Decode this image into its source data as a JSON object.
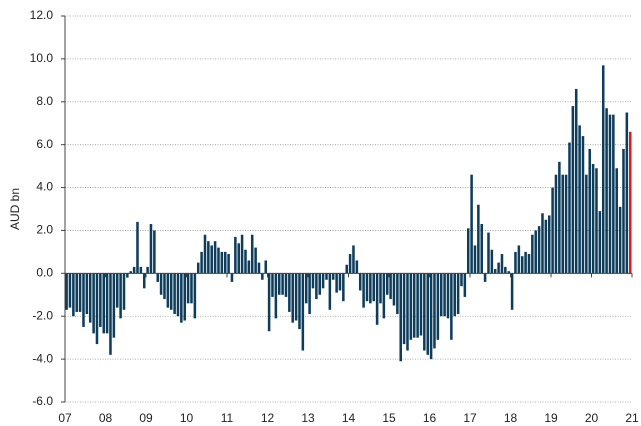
{
  "chart_data": {
    "type": "bar",
    "y_label": "AUD bn",
    "color": "#0e3d5c",
    "highlight": {
      "index": 167,
      "color": "#e3191c"
    },
    "grid": true,
    "ylim": [
      -6,
      12
    ],
    "yticks": [
      {
        "value": -6,
        "label": "-6.0"
      },
      {
        "value": -4,
        "label": "-4.0"
      },
      {
        "value": -2,
        "label": "-2.0"
      },
      {
        "value": 0,
        "label": "0.0"
      },
      {
        "value": 2,
        "label": "2.0"
      },
      {
        "value": 4,
        "label": "4.0"
      },
      {
        "value": 6,
        "label": "6.0"
      },
      {
        "value": 8,
        "label": "8.0"
      },
      {
        "value": 10,
        "label": "10.0"
      },
      {
        "value": 12,
        "label": "12.0"
      }
    ],
    "xlim": [
      2007,
      2021
    ],
    "xticks": [
      {
        "value": 2007,
        "label": "07"
      },
      {
        "value": 2008,
        "label": "08"
      },
      {
        "value": 2009,
        "label": "09"
      },
      {
        "value": 2010,
        "label": "10"
      },
      {
        "value": 2011,
        "label": "11"
      },
      {
        "value": 2012,
        "label": "12"
      },
      {
        "value": 2013,
        "label": "13"
      },
      {
        "value": 2014,
        "label": "14"
      },
      {
        "value": 2015,
        "label": "15"
      },
      {
        "value": 2016,
        "label": "16"
      },
      {
        "value": 2017,
        "label": "17"
      },
      {
        "value": 2018,
        "label": "18"
      },
      {
        "value": 2019,
        "label": "19"
      },
      {
        "value": 2020,
        "label": "20"
      },
      {
        "value": 2021,
        "label": "21"
      }
    ],
    "x": [
      2007,
      2007.083,
      2007.167,
      2007.25,
      2007.333,
      2007.417,
      2007.5,
      2007.583,
      2007.667,
      2007.75,
      2007.833,
      2007.917,
      2008,
      2008.083,
      2008.167,
      2008.25,
      2008.333,
      2008.417,
      2008.5,
      2008.583,
      2008.667,
      2008.75,
      2008.833,
      2008.917,
      2009,
      2009.083,
      2009.167,
      2009.25,
      2009.333,
      2009.417,
      2009.5,
      2009.583,
      2009.667,
      2009.75,
      2009.833,
      2009.917,
      2010,
      2010.083,
      2010.167,
      2010.25,
      2010.333,
      2010.417,
      2010.5,
      2010.583,
      2010.667,
      2010.75,
      2010.833,
      2010.917,
      2011,
      2011.083,
      2011.167,
      2011.25,
      2011.333,
      2011.417,
      2011.5,
      2011.583,
      2011.667,
      2011.75,
      2011.833,
      2011.917,
      2012,
      2012.083,
      2012.167,
      2012.25,
      2012.333,
      2012.417,
      2012.5,
      2012.583,
      2012.667,
      2012.75,
      2012.833,
      2012.917,
      2013,
      2013.083,
      2013.167,
      2013.25,
      2013.333,
      2013.417,
      2013.5,
      2013.583,
      2013.667,
      2013.75,
      2013.833,
      2013.917,
      2014,
      2014.083,
      2014.167,
      2014.25,
      2014.333,
      2014.417,
      2014.5,
      2014.583,
      2014.667,
      2014.75,
      2014.833,
      2014.917,
      2015,
      2015.083,
      2015.167,
      2015.25,
      2015.333,
      2015.417,
      2015.5,
      2015.583,
      2015.667,
      2015.75,
      2015.833,
      2015.917,
      2016,
      2016.083,
      2016.167,
      2016.25,
      2016.333,
      2016.417,
      2016.5,
      2016.583,
      2016.667,
      2016.75,
      2016.833,
      2016.917,
      2017,
      2017.083,
      2017.167,
      2017.25,
      2017.333,
      2017.417,
      2017.5,
      2017.583,
      2017.667,
      2017.75,
      2017.833,
      2017.917,
      2018,
      2018.083,
      2018.167,
      2018.25,
      2018.333,
      2018.417,
      2018.5,
      2018.583,
      2018.667,
      2018.75,
      2018.833,
      2018.917,
      2019,
      2019.083,
      2019.167,
      2019.25,
      2019.333,
      2019.417,
      2019.5,
      2019.583,
      2019.667,
      2019.75,
      2019.833,
      2019.917,
      2020,
      2020.083,
      2020.167,
      2020.25,
      2020.333,
      2020.417,
      2020.5,
      2020.583,
      2020.667,
      2020.75,
      2020.833,
      2020.917
    ],
    "values": [
      -1.7,
      -1.6,
      -2.0,
      -1.8,
      -1.8,
      -2.5,
      -1.9,
      -2.3,
      -2.8,
      -3.3,
      -2.5,
      -2.8,
      -2.8,
      -3.8,
      -3.0,
      -1.6,
      -2.1,
      -1.7,
      -0.2,
      0.1,
      0.3,
      2.4,
      0.3,
      -0.7,
      0.3,
      2.3,
      2.0,
      -0.4,
      -1.0,
      -1.2,
      -1.6,
      -1.7,
      -1.9,
      -2.0,
      -2.3,
      -2.2,
      -1.4,
      -1.4,
      -2.1,
      0.5,
      1.0,
      1.8,
      1.5,
      1.3,
      1.5,
      1.2,
      1.0,
      1.0,
      0.9,
      -0.4,
      1.7,
      1.4,
      1.8,
      1.1,
      0.6,
      1.8,
      1.2,
      0.5,
      -0.3,
      0.6,
      -2.7,
      -1.1,
      -2.1,
      -1.0,
      -1.0,
      -1.1,
      -1.8,
      -2.3,
      -2.2,
      -2.6,
      -3.6,
      -1.4,
      -1.9,
      -0.7,
      -1.2,
      -1.0,
      -0.7,
      -0.3,
      -1.7,
      -0.3,
      -0.9,
      -0.8,
      -1.3,
      0.4,
      0.9,
      1.3,
      0.6,
      -0.8,
      -1.6,
      -1.3,
      -1.4,
      -1.3,
      -2.4,
      -1.4,
      -2.1,
      -1.0,
      -1.2,
      -1.5,
      -1.9,
      -4.1,
      -3.3,
      -3.6,
      -3.1,
      -3.0,
      -3.0,
      -2.9,
      -3.6,
      -3.8,
      -4.0,
      -3.5,
      -3.1,
      -2.0,
      -2.0,
      -2.1,
      -3.1,
      -2.0,
      -1.9,
      -0.6,
      -1.1,
      2.1,
      4.6,
      1.3,
      3.2,
      2.3,
      -0.4,
      1.9,
      1.1,
      0.2,
      0.5,
      0.9,
      0.3,
      0.1,
      -1.7,
      1.0,
      1.3,
      0.8,
      1.0,
      0.9,
      1.8,
      2.0,
      2.2,
      2.8,
      2.5,
      2.7,
      4.0,
      4.6,
      5.2,
      4.6,
      4.6,
      6.1,
      7.8,
      8.6,
      6.9,
      6.4,
      4.6,
      5.8,
      5.1,
      4.9,
      2.9,
      9.7,
      7.7,
      7.4,
      7.4,
      4.9,
      3.1,
      5.8,
      7.5,
      6.6
    ]
  }
}
